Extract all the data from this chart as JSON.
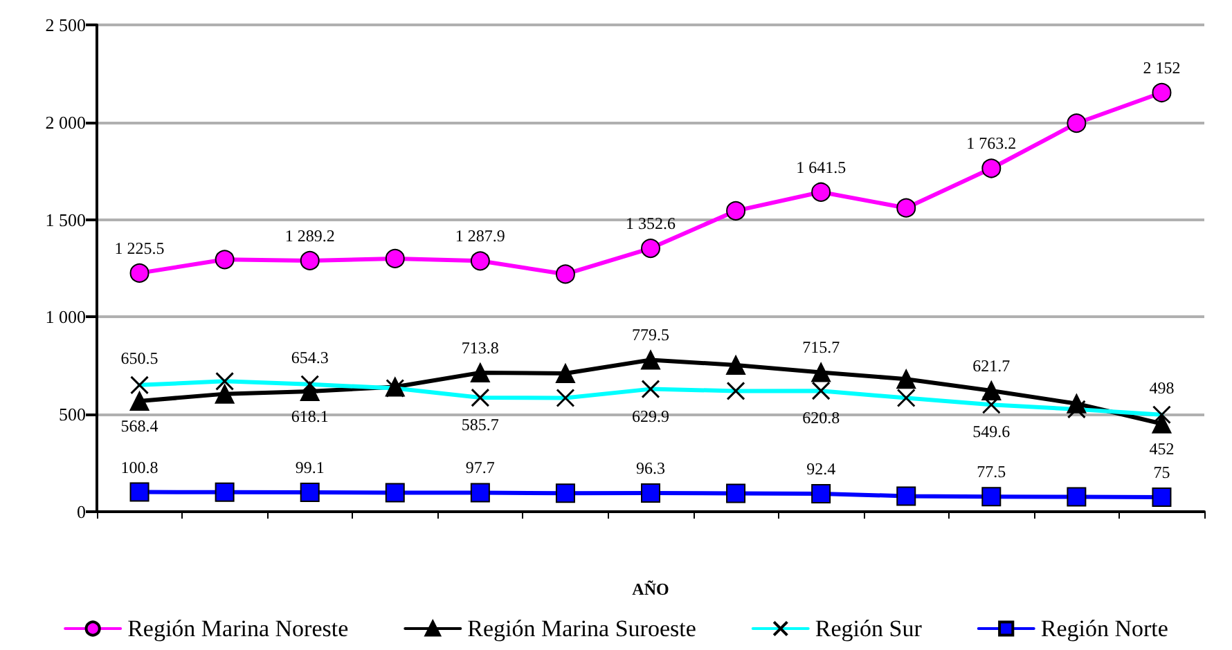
{
  "chart_data": {
    "type": "line",
    "xlabel": "AÑO",
    "categories": [
      null,
      null,
      null,
      null,
      null,
      null,
      null,
      null,
      null,
      null,
      null,
      null,
      null
    ],
    "series": [
      {
        "name": "Región Marina Noreste",
        "color": "#ff00ff",
        "marker": "circle",
        "values": [
          1225.5,
          1295,
          1289.2,
          1300,
          1287.9,
          1220,
          1352.6,
          1545,
          1641.5,
          1560,
          1763.2,
          1995,
          2152
        ],
        "value_labels": [
          "1 225.5",
          null,
          "1 289.2",
          null,
          "1 287.9",
          null,
          "1 352.6",
          null,
          "1 641.5",
          null,
          "1 763.2",
          null,
          "2 152"
        ]
      },
      {
        "name": "Región Marina Suroeste",
        "color": "#000000",
        "marker": "triangle",
        "values": [
          568.4,
          605,
          618.1,
          641,
          713.8,
          710,
          779.5,
          753,
          715.7,
          681,
          621.7,
          555,
          452
        ],
        "value_labels": [
          "568.4",
          null,
          "618.1",
          null,
          "713.8",
          null,
          "779.5",
          null,
          "715.7",
          null,
          "621.7",
          null,
          "452"
        ]
      },
      {
        "name": "Región Sur",
        "color": "#00ffff",
        "marker": "cross",
        "values": [
          650.5,
          670,
          654.3,
          634,
          585.7,
          584,
          629.9,
          620,
          620.8,
          584,
          549.6,
          526,
          498
        ],
        "value_labels": [
          "650.5",
          null,
          "654.3",
          null,
          "585.7",
          null,
          "629.9",
          null,
          "620.8",
          null,
          "549.6",
          null,
          "498"
        ]
      },
      {
        "name": "Región Norte",
        "color": "#0000ff",
        "marker": "square",
        "values": [
          100.8,
          100,
          99.1,
          98,
          97.7,
          95,
          96.3,
          94,
          92.4,
          80,
          77.5,
          76,
          75
        ],
        "value_labels": [
          "100.8",
          null,
          "99.1",
          null,
          "97.7",
          null,
          "96.3",
          null,
          "92.4",
          null,
          "77.5",
          null,
          "75"
        ]
      }
    ],
    "ylim": [
      0,
      2500
    ],
    "yticks": [
      {
        "value": 0,
        "label": "0"
      },
      {
        "value": 500,
        "label": "500"
      },
      {
        "value": 1000,
        "label": "1 000"
      },
      {
        "value": 1500,
        "label": "1 500"
      },
      {
        "value": 2000,
        "label": "2 000"
      },
      {
        "value": 2500,
        "label": "2 500"
      }
    ],
    "grid": "y",
    "legend": "bottom"
  }
}
